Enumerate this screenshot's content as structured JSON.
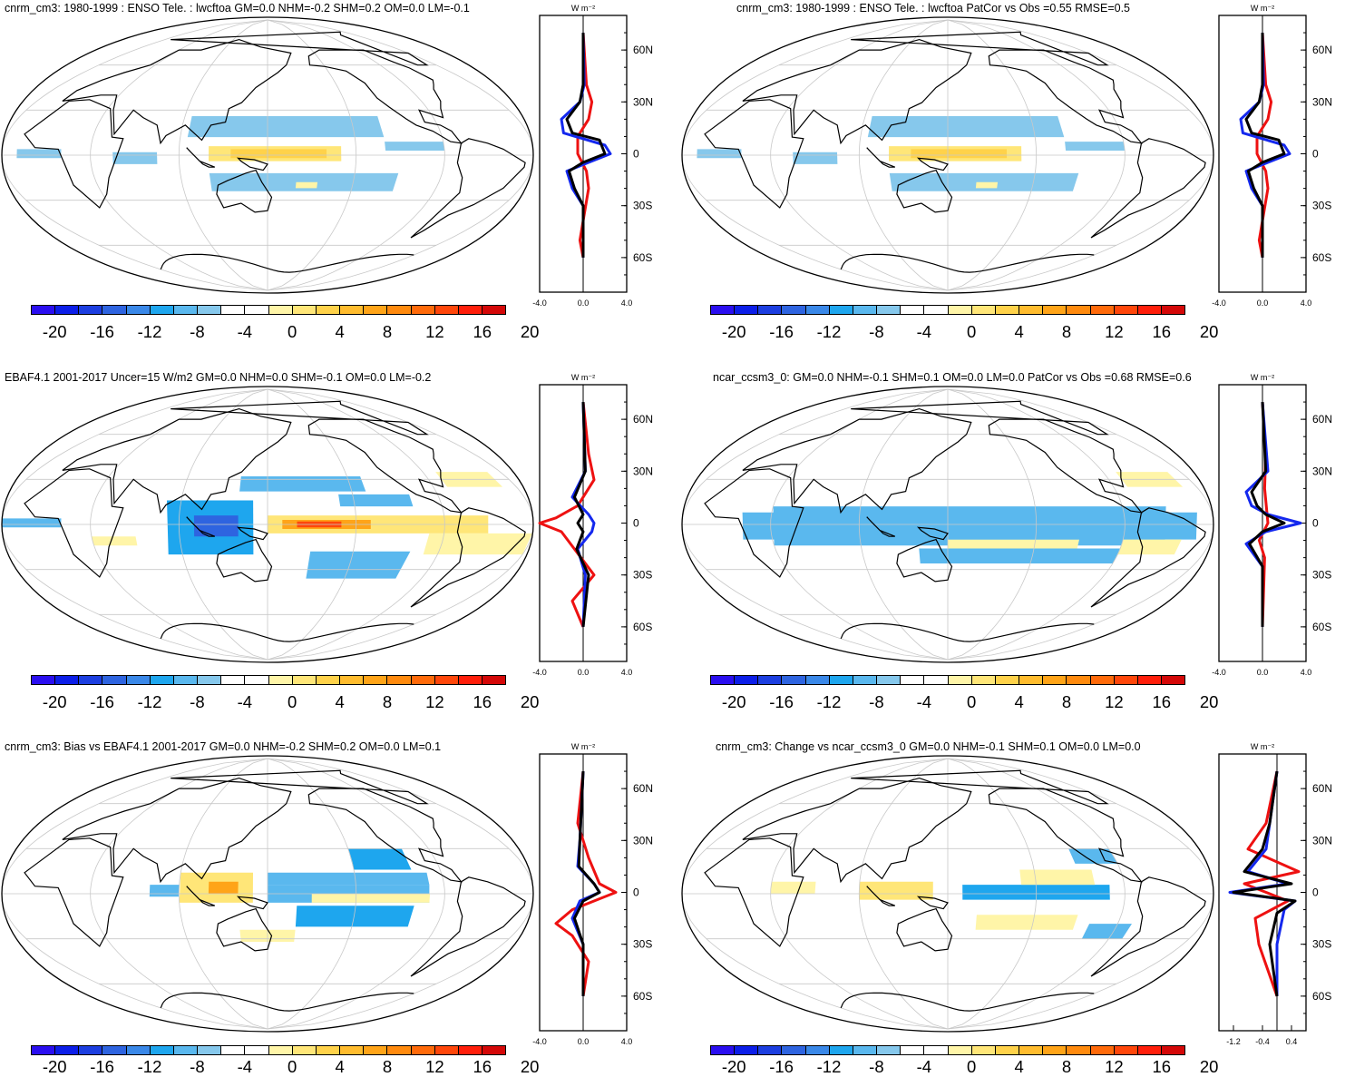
{
  "colorbar": {
    "colors": [
      "#2a0ef0",
      "#0c1ee8",
      "#1c3ee0",
      "#2e64e0",
      "#3a88e8",
      "#1ea6ee",
      "#5ab8ee",
      "#86c8ec",
      "#ffffff",
      "#ffffff",
      "#fff5a8",
      "#ffe678",
      "#ffd24a",
      "#ffbc2e",
      "#ffa418",
      "#ff8a0e",
      "#ff6a0a",
      "#ff460a",
      "#ff1e0a",
      "#d40808"
    ],
    "labels": [
      "-20",
      "-16",
      "-12",
      "-8",
      "-4",
      "0",
      "4",
      "8",
      "12",
      "16",
      "20"
    ]
  },
  "panels": [
    {
      "title": "cnrm_cm3: 1980-1999 : ENSO Tele. : lwcftoa GM=0.0 NHM=-0.2 SHM=0.2 OM=0.0 LM=-0.1",
      "zonal_unit": "W m⁻²",
      "lat_labels": [
        "60N",
        "30N",
        "0",
        "30S",
        "60S"
      ],
      "x_ticks": [
        "-4.0",
        "0.0",
        "4.0"
      ]
    },
    {
      "title": "cnrm_cm3: 1980-1999 : ENSO Tele. : lwcftoa PatCor vs Obs =0.55 RMSE=0.5",
      "zonal_unit": "W m⁻²",
      "lat_labels": [
        "60N",
        "30N",
        "0",
        "30S",
        "60S"
      ],
      "x_ticks": [
        "-4.0",
        "0.0",
        "4.0"
      ]
    },
    {
      "title": "EBAF4.1 2001-2017 Uncer=15 W/m2 GM=0.0 NHM=0.0 SHM=-0.1 OM=0.0 LM=-0.2",
      "zonal_unit": "W m⁻²",
      "lat_labels": [
        "60N",
        "30N",
        "0",
        "30S",
        "60S"
      ],
      "x_ticks": [
        "-4.0",
        "0.0",
        "4.0"
      ]
    },
    {
      "title": "ncar_ccsm3_0: GM=0.0 NHM=-0.1 SHM=0.1 OM=0.0 LM=0.0 PatCor vs Obs =0.68 RMSE=0.6",
      "zonal_unit": "W m⁻²",
      "lat_labels": [
        "60N",
        "30N",
        "0",
        "30S",
        "60S"
      ],
      "x_ticks": [
        "-4.0",
        "0.0",
        "4.0"
      ]
    },
    {
      "title": "cnrm_cm3: Bias vs EBAF4.1 2001-2017 GM=0.0 NHM=-0.2 SHM=0.2 OM=0.0 LM=0.1",
      "zonal_unit": "W m⁻²",
      "lat_labels": [
        "60N",
        "30N",
        "0",
        "30S",
        "60S"
      ],
      "x_ticks": [
        "-4.0",
        "0.0",
        "4.0"
      ]
    },
    {
      "title": "cnrm_cm3: Change vs ncar_ccsm3_0 GM=0.0 NHM=-0.1 SHM=0.1 OM=0.0 LM=0.0",
      "zonal_unit": "W m⁻²",
      "lat_labels": [
        "60N",
        "30N",
        "0",
        "30S",
        "60S"
      ],
      "x_ticks": [
        "-1.2",
        "-0.4",
        "0.4"
      ]
    }
  ]
}
